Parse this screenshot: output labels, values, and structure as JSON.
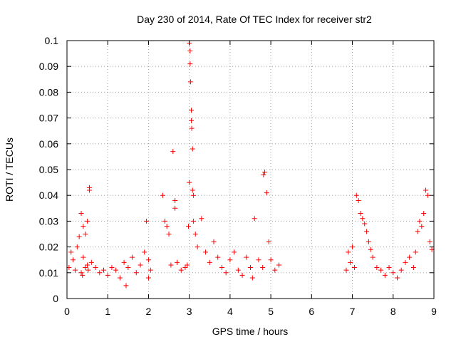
{
  "chart_data": {
    "type": "scatter",
    "title": "Day 230 of 2014, Rate Of TEC Index for receiver str2",
    "xlabel": "GPS time / hours",
    "ylabel": "ROTI / TECUs",
    "xlim": [
      0,
      9
    ],
    "ylim": [
      0,
      0.1
    ],
    "xticks": [
      0,
      1,
      2,
      3,
      4,
      5,
      6,
      7,
      8,
      9
    ],
    "xtick_labels": [
      "0",
      "1",
      "2",
      "3",
      "4",
      "5",
      "6",
      "7",
      "8",
      "9"
    ],
    "yticks": [
      0,
      0.01,
      0.02,
      0.03,
      0.04,
      0.05,
      0.06,
      0.07,
      0.08,
      0.09,
      0.1
    ],
    "ytick_labels": [
      "0",
      "0.01",
      "0.02",
      "0.03",
      "0.04",
      "0.05",
      "0.06",
      "0.07",
      "0.08",
      "0.09",
      "0.1"
    ],
    "grid": true,
    "legend": "none",
    "marker": "+",
    "marker_color": "#ff0000",
    "series": [
      {
        "name": "ROTI",
        "x": [
          0.05,
          0.1,
          0.15,
          0.2,
          0.25,
          0.3,
          0.35,
          0.4,
          0.45,
          0.5,
          0.55,
          0.55,
          0.6,
          0.4,
          0.45,
          0.35,
          0.38,
          0.5,
          0.52,
          0.7,
          0.8,
          0.9,
          1.0,
          1.1,
          1.2,
          1.3,
          1.4,
          1.45,
          1.5,
          1.6,
          1.7,
          1.8,
          1.9,
          2.0,
          2.0,
          1.95,
          2.05,
          2.35,
          2.4,
          2.45,
          2.5,
          2.55,
          2.6,
          2.65,
          2.65,
          2.7,
          2.8,
          2.9,
          2.95,
          2.98,
          3.0,
          3.0,
          3.02,
          3.02,
          3.03,
          3.05,
          3.05,
          3.06,
          3.08,
          3.08,
          3.1,
          3.1,
          3.15,
          3.2,
          3.3,
          3.4,
          3.5,
          3.6,
          3.7,
          3.8,
          3.9,
          4.0,
          4.1,
          4.2,
          4.3,
          4.4,
          4.5,
          4.55,
          4.6,
          4.7,
          4.8,
          4.82,
          4.85,
          4.9,
          4.95,
          5.0,
          5.1,
          5.2,
          6.85,
          6.9,
          6.95,
          7.0,
          7.05,
          7.1,
          7.15,
          7.2,
          7.25,
          7.3,
          7.35,
          7.4,
          7.45,
          7.5,
          7.6,
          7.7,
          7.8,
          7.9,
          8.0,
          8.1,
          8.2,
          8.3,
          8.4,
          8.5,
          8.55,
          8.6,
          8.65,
          8.7,
          8.75,
          8.8,
          8.85,
          8.9,
          8.95
        ],
        "y": [
          0.012,
          0.018,
          0.015,
          0.011,
          0.02,
          0.024,
          0.033,
          0.028,
          0.025,
          0.03,
          0.043,
          0.042,
          0.014,
          0.016,
          0.012,
          0.01,
          0.009,
          0.013,
          0.011,
          0.012,
          0.01,
          0.011,
          0.009,
          0.012,
          0.011,
          0.008,
          0.014,
          0.005,
          0.012,
          0.016,
          0.01,
          0.013,
          0.018,
          0.015,
          0.008,
          0.03,
          0.011,
          0.04,
          0.03,
          0.028,
          0.025,
          0.013,
          0.057,
          0.038,
          0.035,
          0.014,
          0.011,
          0.012,
          0.013,
          0.028,
          0.045,
          0.099,
          0.091,
          0.096,
          0.084,
          0.073,
          0.069,
          0.066,
          0.058,
          0.042,
          0.04,
          0.03,
          0.025,
          0.02,
          0.031,
          0.018,
          0.014,
          0.022,
          0.016,
          0.012,
          0.01,
          0.015,
          0.018,
          0.011,
          0.009,
          0.016,
          0.012,
          0.008,
          0.031,
          0.015,
          0.012,
          0.048,
          0.049,
          0.041,
          0.022,
          0.015,
          0.011,
          0.013,
          0.011,
          0.018,
          0.014,
          0.02,
          0.012,
          0.04,
          0.038,
          0.033,
          0.031,
          0.029,
          0.026,
          0.022,
          0.019,
          0.016,
          0.012,
          0.011,
          0.009,
          0.012,
          0.01,
          0.008,
          0.011,
          0.014,
          0.016,
          0.012,
          0.018,
          0.026,
          0.03,
          0.028,
          0.033,
          0.042,
          0.04,
          0.022,
          0.019
        ]
      }
    ]
  }
}
